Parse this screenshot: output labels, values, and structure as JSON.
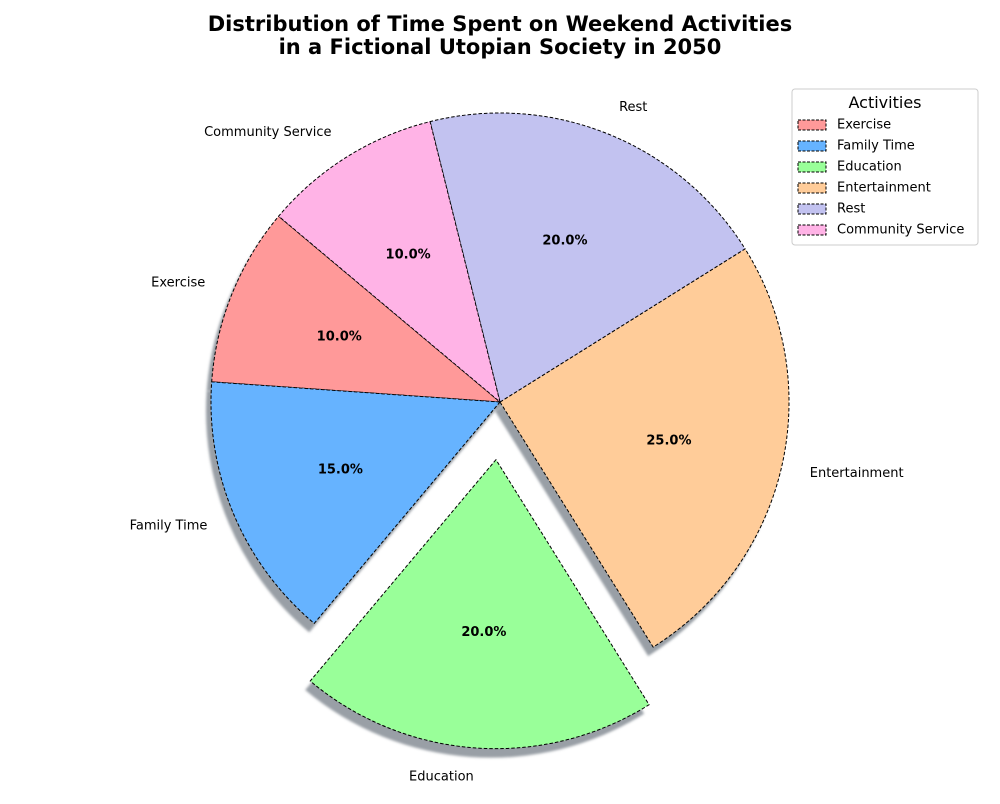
{
  "chart_data": {
    "type": "pie",
    "title_lines": [
      "Distribution of Time Spent on Weekend Activities",
      "in a Fictional Utopian Society in 2050"
    ],
    "start_angle_deg": 140,
    "direction": "counterclockwise",
    "shadow": true,
    "edge_style": "dashed",
    "slices": [
      {
        "label": "Exercise",
        "value": 10,
        "pct_label": "10.0%",
        "color": "#ff9999",
        "exploded": false
      },
      {
        "label": "Family Time",
        "value": 15,
        "pct_label": "15.0%",
        "color": "#66b3ff",
        "exploded": false
      },
      {
        "label": "Education",
        "value": 20,
        "pct_label": "20.0%",
        "color": "#99ff99",
        "exploded": true
      },
      {
        "label": "Entertainment",
        "value": 25,
        "pct_label": "25.0%",
        "color": "#ffcc99",
        "exploded": false
      },
      {
        "label": "Rest",
        "value": 20,
        "pct_label": "20.0%",
        "color": "#c2c2f0",
        "exploded": false
      },
      {
        "label": "Community Service",
        "value": 10,
        "pct_label": "10.0%",
        "color": "#ffb3e6",
        "exploded": false
      }
    ],
    "legend": {
      "title": "Activities",
      "placement": "top-right"
    }
  }
}
